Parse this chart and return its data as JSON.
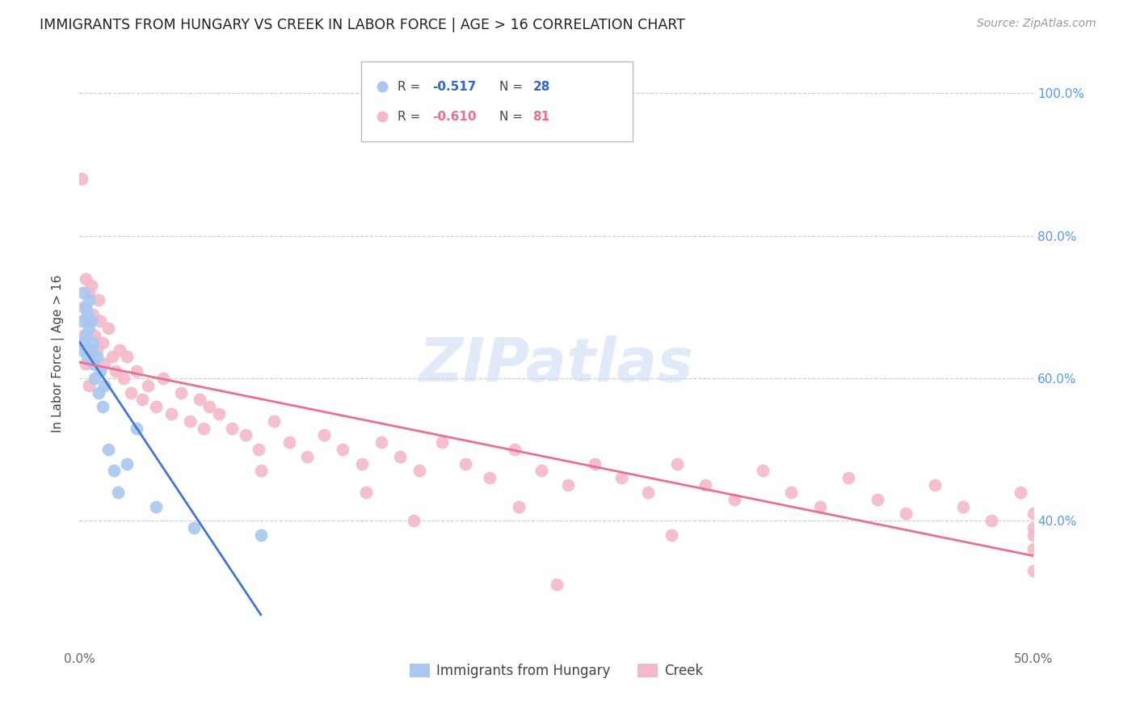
{
  "title": "IMMIGRANTS FROM HUNGARY VS CREEK IN LABOR FORCE | AGE > 16 CORRELATION CHART",
  "source": "Source: ZipAtlas.com",
  "ylabel": "In Labor Force | Age > 16",
  "x_min": 0.0,
  "x_max": 0.5,
  "y_min": 0.22,
  "y_max": 1.05,
  "x_ticks": [
    0.0,
    0.1,
    0.2,
    0.3,
    0.4,
    0.5
  ],
  "x_tick_labels": [
    "0.0%",
    "",
    "",
    "",
    "",
    "50.0%"
  ],
  "y_ticks": [
    0.4,
    0.6,
    0.8,
    1.0
  ],
  "y_tick_labels": [
    "40.0%",
    "60.0%",
    "80.0%",
    "100.0%"
  ],
  "grid_color": "#cccccc",
  "background_color": "#ffffff",
  "hungary_color": "#a8c8f0",
  "creek_color": "#f5b8c8",
  "hungary_line_color": "#4477cc",
  "creek_line_color": "#e87090",
  "watermark": "ZIPatlas",
  "hungary_x": [
    0.001,
    0.001,
    0.002,
    0.002,
    0.003,
    0.003,
    0.004,
    0.004,
    0.005,
    0.005,
    0.006,
    0.006,
    0.007,
    0.007,
    0.008,
    0.009,
    0.01,
    0.011,
    0.012,
    0.013,
    0.015,
    0.018,
    0.02,
    0.025,
    0.03,
    0.04,
    0.06,
    0.095
  ],
  "hungary_y": [
    0.68,
    0.64,
    0.72,
    0.65,
    0.7,
    0.66,
    0.69,
    0.63,
    0.67,
    0.71,
    0.64,
    0.68,
    0.62,
    0.65,
    0.6,
    0.63,
    0.58,
    0.61,
    0.56,
    0.59,
    0.5,
    0.47,
    0.44,
    0.48,
    0.53,
    0.42,
    0.39,
    0.38
  ],
  "creek_x": [
    0.001,
    0.002,
    0.003,
    0.004,
    0.005,
    0.006,
    0.007,
    0.008,
    0.009,
    0.01,
    0.011,
    0.012,
    0.013,
    0.015,
    0.017,
    0.019,
    0.021,
    0.023,
    0.025,
    0.027,
    0.03,
    0.033,
    0.036,
    0.04,
    0.044,
    0.048,
    0.053,
    0.058,
    0.063,
    0.068,
    0.073,
    0.08,
    0.087,
    0.094,
    0.102,
    0.11,
    0.119,
    0.128,
    0.138,
    0.148,
    0.158,
    0.168,
    0.178,
    0.19,
    0.202,
    0.215,
    0.228,
    0.242,
    0.256,
    0.27,
    0.284,
    0.298,
    0.313,
    0.328,
    0.343,
    0.358,
    0.373,
    0.388,
    0.403,
    0.418,
    0.433,
    0.448,
    0.463,
    0.478,
    0.493,
    0.5,
    0.5,
    0.5,
    0.5,
    0.5,
    0.002,
    0.003,
    0.004,
    0.005,
    0.15,
    0.23,
    0.31,
    0.065,
    0.095,
    0.175,
    0.25
  ],
  "creek_y": [
    0.88,
    0.7,
    0.74,
    0.68,
    0.72,
    0.73,
    0.69,
    0.66,
    0.64,
    0.71,
    0.68,
    0.65,
    0.62,
    0.67,
    0.63,
    0.61,
    0.64,
    0.6,
    0.63,
    0.58,
    0.61,
    0.57,
    0.59,
    0.56,
    0.6,
    0.55,
    0.58,
    0.54,
    0.57,
    0.56,
    0.55,
    0.53,
    0.52,
    0.5,
    0.54,
    0.51,
    0.49,
    0.52,
    0.5,
    0.48,
    0.51,
    0.49,
    0.47,
    0.51,
    0.48,
    0.46,
    0.5,
    0.47,
    0.45,
    0.48,
    0.46,
    0.44,
    0.48,
    0.45,
    0.43,
    0.47,
    0.44,
    0.42,
    0.46,
    0.43,
    0.41,
    0.45,
    0.42,
    0.4,
    0.44,
    0.41,
    0.39,
    0.38,
    0.36,
    0.33,
    0.66,
    0.62,
    0.64,
    0.59,
    0.44,
    0.42,
    0.38,
    0.53,
    0.47,
    0.4,
    0.31
  ]
}
